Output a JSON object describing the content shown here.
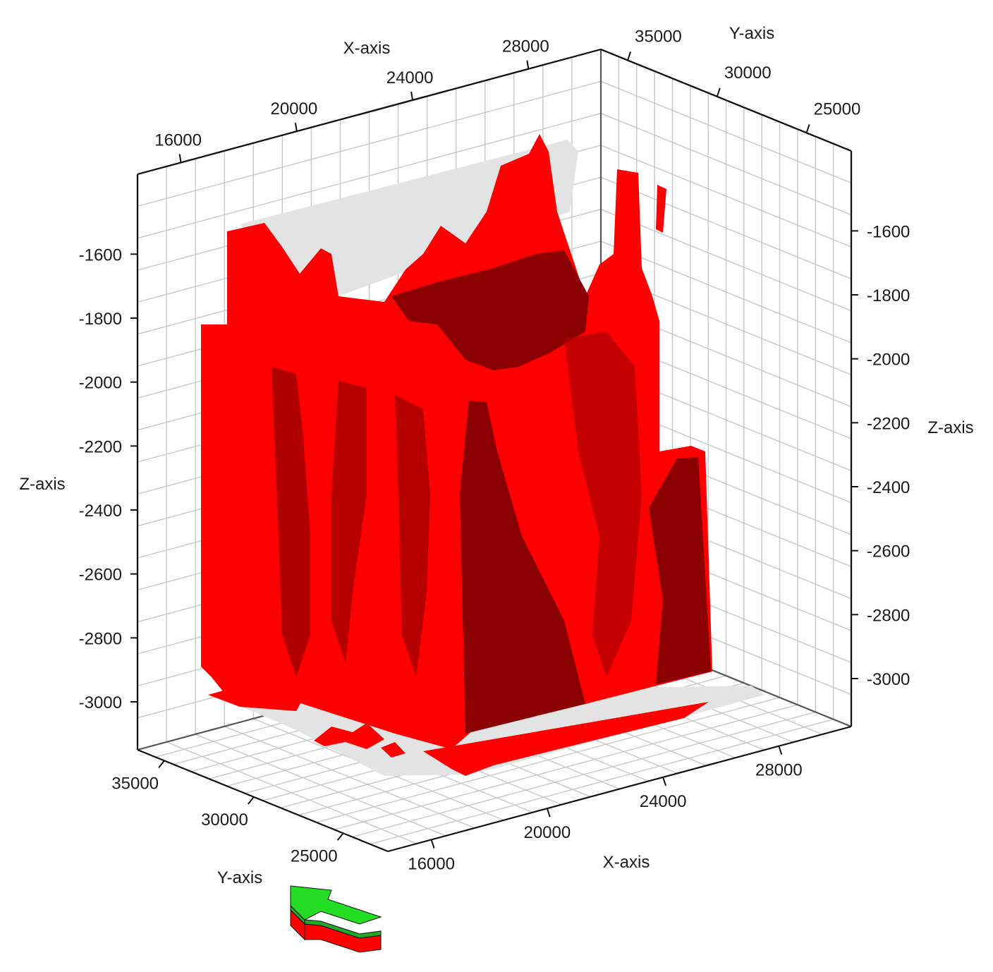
{
  "chart_data": {
    "type": "3d-surface",
    "title": "",
    "axes": {
      "x": {
        "label": "X-axis",
        "ticks": [
          16000,
          20000,
          24000,
          28000
        ],
        "range": [
          14500,
          30500
        ]
      },
      "y": {
        "label": "Y-axis",
        "ticks": [
          25000,
          30000,
          35000
        ],
        "range": [
          22500,
          36500
        ]
      },
      "z": {
        "label": "Z-axis",
        "ticks": [
          -1600,
          -1800,
          -2000,
          -2200,
          -2400,
          -2600,
          -2800,
          -3000
        ],
        "range": [
          -3150,
          -1350
        ]
      }
    },
    "grid": true,
    "surface": {
      "color": "#ff0000",
      "shadow_color": "#8b0000",
      "plane_color": "#e3e3e3"
    },
    "orientation_arrow": {
      "top_color": "#22dd22",
      "side_colors": [
        "#ff0000",
        "#22aa22"
      ]
    }
  }
}
